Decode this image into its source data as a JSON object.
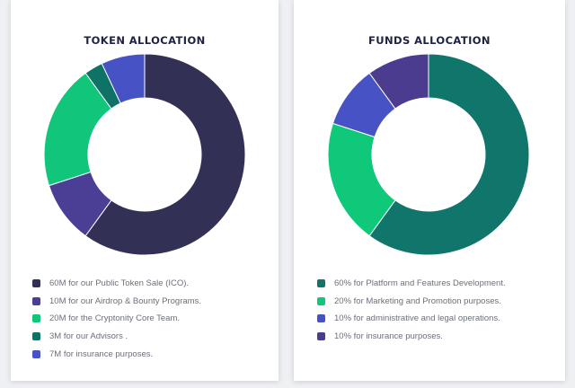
{
  "chart_data": [
    {
      "type": "pie",
      "title": "TOKEN ALLOCATION",
      "donut": true,
      "categories": [
        "60M for our Public Token Sale (ICO).",
        "10M for our Airdrop & Bounty Programs.",
        "20M for the Cryptonity Core Team.",
        "3M for our Advisors .",
        "7M for insurance purposes."
      ],
      "values": [
        60,
        10,
        20,
        3,
        7
      ],
      "colors": [
        "#333056",
        "#4b3f95",
        "#11c57b",
        "#0f7266",
        "#4752c4"
      ],
      "legend": "bottom"
    },
    {
      "type": "pie",
      "title": "FUNDS ALLOCATION",
      "donut": true,
      "categories": [
        "60% for Platform and Features Development.",
        "20% for Marketing and Promotion purposes.",
        "10% for administrative and legal operations.",
        "10% for insurance purposes."
      ],
      "values": [
        60,
        20,
        10,
        10
      ],
      "colors": [
        "#10756b",
        "#0fc87a",
        "#4753c4",
        "#4b3c8f"
      ],
      "legend": "bottom"
    }
  ]
}
